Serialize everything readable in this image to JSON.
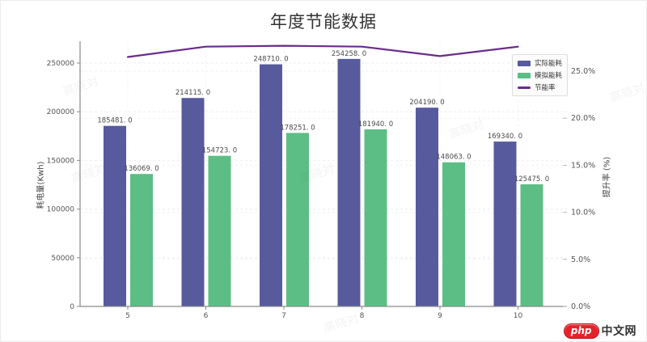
{
  "chart_data": {
    "type": "bar",
    "title": "年度节能数据",
    "categories": [
      "5",
      "6",
      "7",
      "8",
      "9",
      "10"
    ],
    "series": [
      {
        "name": "实际能耗",
        "type": "bar",
        "color": "#575A9D",
        "values": [
          185481,
          214115,
          248710,
          254258,
          204190,
          169340
        ],
        "value_labels": [
          "185481. 0",
          "214115. 0",
          "248710. 0",
          "254258. 0",
          "204190. 0",
          "169340. 0"
        ]
      },
      {
        "name": "模拟能耗",
        "type": "bar",
        "color": "#5CBE85",
        "values": [
          136069,
          154723,
          178251,
          181940,
          148063,
          125475
        ],
        "value_labels": [
          "136069. 0",
          "154723. 0",
          "178251. 0",
          "181940. 0",
          "148063. 0",
          "125475. 0"
        ]
      },
      {
        "name": "节能率",
        "type": "line",
        "axis": "right",
        "color": "#6A2C8D",
        "values_percent": [
          26.5,
          27.6,
          27.7,
          27.6,
          26.6,
          27.6
        ]
      }
    ],
    "left_axis": {
      "label": "耗电量(Kwh)",
      "tick_labels": [
        "0",
        "50000",
        "100000",
        "150000",
        "200000",
        "250000"
      ],
      "tick_values": [
        0,
        50000,
        100000,
        150000,
        200000,
        250000
      ],
      "range": [
        0,
        272000
      ]
    },
    "right_axis": {
      "label": "提升率 (%)",
      "tick_labels": [
        "0.0%",
        "5.0%",
        "10.0%",
        "15.0%",
        "20.0%",
        "25.0%"
      ],
      "tick_values": [
        0,
        5,
        10,
        15,
        20,
        25
      ],
      "range": [
        0,
        28.2
      ]
    },
    "x_axis": {
      "tick_labels": [
        "5",
        "6",
        "7",
        "8",
        "9",
        "10"
      ]
    },
    "legend": {
      "position": "top-right"
    },
    "grid": "dashed-light"
  },
  "watermark": {
    "text": "高晓对"
  },
  "logo": {
    "badge": "php",
    "text": "中文网",
    "badge_color": "#e6212a"
  }
}
